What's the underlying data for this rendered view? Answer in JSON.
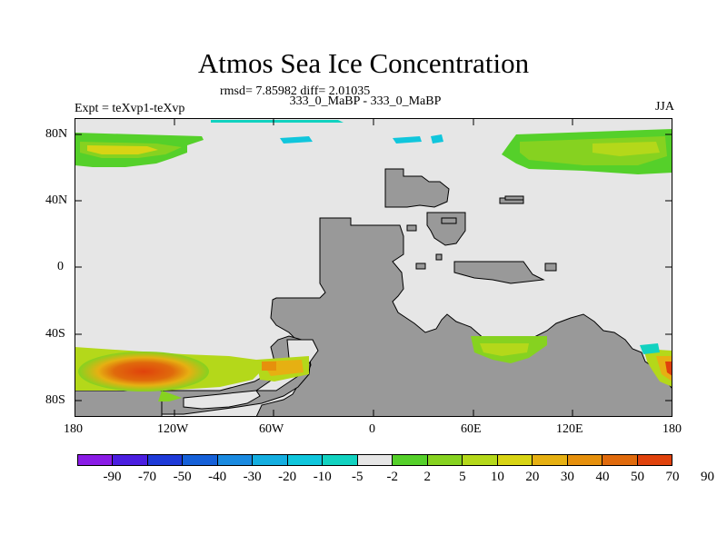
{
  "title": "Atmos Sea Ice Concentration",
  "stats": "rmsd= 7.85982 diff= 2.01035",
  "expt_label": "Expt = teXvp1-teXvp",
  "case_label": "333_0_MaBP - 333_0_MaBP",
  "season_label": "JJA",
  "lat_ticks": [
    "80N",
    "40N",
    "0",
    "40S",
    "80S"
  ],
  "lon_ticks": [
    "180",
    "120W",
    "60W",
    "0",
    "60E",
    "120E",
    "180"
  ],
  "colorbar": {
    "labels": [
      "-90",
      "-70",
      "-50",
      "-40",
      "-30",
      "-20",
      "-10",
      "-5",
      "-2",
      "2",
      "5",
      "10",
      "20",
      "30",
      "40",
      "50",
      "70",
      "90"
    ],
    "colors": [
      "#8a1ce6",
      "#4b1ee0",
      "#1e3ad8",
      "#1560d8",
      "#1a8ae0",
      "#14aee0",
      "#10c6dc",
      "#12d2c0",
      "#e6e6e6",
      "#55d02a",
      "#86d220",
      "#b4d81a",
      "#d8d414",
      "#e6b012",
      "#e6900c",
      "#e06a0c",
      "#e0420c"
    ]
  },
  "colors": {
    "ocean": "#e6e6e6",
    "land": "#999999"
  }
}
